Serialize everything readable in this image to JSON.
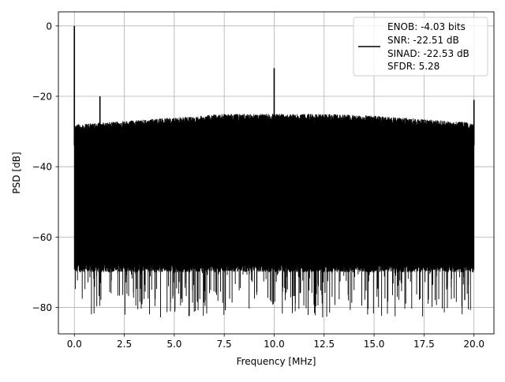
{
  "chart_data": {
    "type": "line",
    "title": "",
    "xlabel": "Frequency [MHz]",
    "ylabel": "PSD [dB]",
    "xlim": [
      -0.8,
      21.0
    ],
    "ylim": [
      -87.5,
      4.0
    ],
    "xticks": [
      0.0,
      2.5,
      5.0,
      7.5,
      10.0,
      12.5,
      15.0,
      17.5,
      20.0
    ],
    "xtick_labels": [
      "0.0",
      "2.5",
      "5.0",
      "7.5",
      "10.0",
      "12.5",
      "15.0",
      "17.5",
      "20.0"
    ],
    "yticks": [
      0,
      -20,
      -40,
      -60,
      -80
    ],
    "ytick_labels": [
      "0",
      "−20",
      "−40",
      "−60",
      "−80"
    ],
    "grid": true,
    "legend_position": "top-right",
    "series": [
      {
        "name": "ENOB: -4.03 bits\nSNR: -22.51 dB\nSINAD: -22.53 dB\nSFDR: 5.28",
        "color": "#000000",
        "style": "dense noise floor",
        "x_range": [
          0.0,
          20.0
        ],
        "envelope_x": [
          0.0,
          2.5,
          5.0,
          7.5,
          10.0,
          12.5,
          15.0,
          17.5,
          20.0
        ],
        "envelope_upper": [
          -28,
          -27,
          -26,
          -25,
          -25,
          -25,
          -25.5,
          -26.5,
          -27.5
        ],
        "envelope_lower": [
          -70,
          -70,
          -70,
          -70,
          -70,
          -70,
          -70,
          -70,
          -70
        ],
        "floor_min": -83,
        "spikes": [
          {
            "x": 0.0,
            "y": 0.0
          },
          {
            "x": 1.28,
            "y": -20.0
          },
          {
            "x": 10.0,
            "y": -12.0
          },
          {
            "x": 20.0,
            "y": -21.0
          }
        ]
      }
    ],
    "legend_lines": [
      "ENOB: -4.03 bits",
      "SNR: -22.51 dB",
      "SINAD: -22.53 dB",
      "SFDR: 5.28"
    ]
  }
}
